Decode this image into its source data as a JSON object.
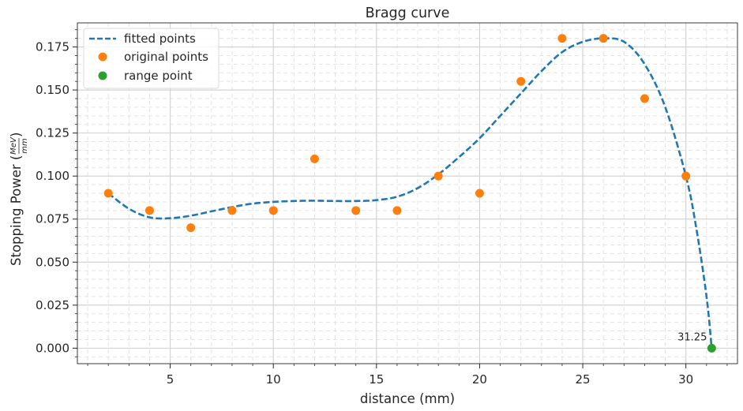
{
  "chart_data": {
    "type": "scatter",
    "title": "Bragg curve",
    "xlabel": "distance (mm)",
    "ylabel": {
      "main": "Stopping Power",
      "num": "MeV",
      "den": "mm"
    },
    "xlim": [
      0.5,
      32.5
    ],
    "ylim": [
      -0.009,
      0.189
    ],
    "x_ticks": [
      5,
      10,
      15,
      20,
      25,
      30
    ],
    "x_tick_labels": [
      "5",
      "10",
      "15",
      "20",
      "25",
      "30"
    ],
    "y_ticks": [
      0.0,
      0.025,
      0.05,
      0.075,
      0.1,
      0.125,
      0.15,
      0.175
    ],
    "y_tick_labels": [
      "0.000",
      "0.025",
      "0.050",
      "0.075",
      "0.100",
      "0.125",
      "0.150",
      "0.175"
    ],
    "grid": true,
    "legend_position": "upper left",
    "series": [
      {
        "name": "fitted points",
        "style": "dashed-line",
        "color": "#1f77b4",
        "x": [
          2,
          3,
          4,
          5,
          6,
          7,
          8,
          9,
          10,
          11,
          12,
          13,
          14,
          15,
          16,
          17,
          18,
          19,
          20,
          21,
          22,
          23,
          24,
          25,
          26,
          27,
          28,
          29,
          30,
          30.5,
          31,
          31.25
        ],
        "y": [
          0.09,
          0.081,
          0.076,
          0.0755,
          0.077,
          0.0795,
          0.082,
          0.084,
          0.085,
          0.0855,
          0.0857,
          0.0855,
          0.0855,
          0.086,
          0.088,
          0.093,
          0.101,
          0.111,
          0.122,
          0.135,
          0.148,
          0.161,
          0.172,
          0.178,
          0.18,
          0.178,
          0.165,
          0.14,
          0.1,
          0.07,
          0.03,
          0.0
        ]
      },
      {
        "name": "original points",
        "style": "marker",
        "color": "#ff7f0e",
        "x": [
          2,
          4,
          6,
          8,
          10,
          12,
          14,
          16,
          18,
          20,
          22,
          24,
          26,
          28,
          30
        ],
        "y": [
          0.09,
          0.08,
          0.07,
          0.08,
          0.08,
          0.11,
          0.08,
          0.08,
          0.1,
          0.09,
          0.155,
          0.18,
          0.18,
          0.145,
          0.1
        ]
      },
      {
        "name": "range point",
        "style": "marker",
        "color": "#2ca02c",
        "x": [
          31.25
        ],
        "y": [
          0.0
        ]
      }
    ],
    "annotations": [
      {
        "text": "31.25",
        "x": 31.25,
        "y": 0.0
      }
    ]
  }
}
